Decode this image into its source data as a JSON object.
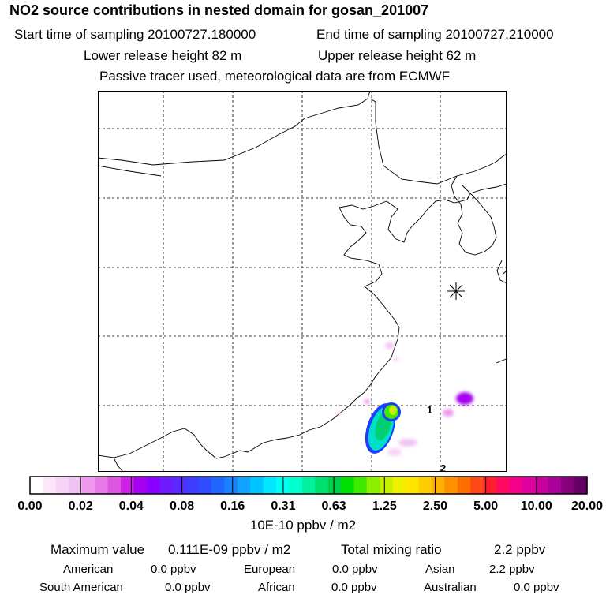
{
  "header": {
    "title": "NO2 source contributions in nested domain for gosan_201007",
    "start_time": "Start time of sampling 20100727.180000",
    "end_time": "End time of sampling 20100727.210000",
    "lower_release": "Lower release height   82 m",
    "upper_release": "Upper release height   62 m",
    "note": "Passive tracer used, meteorological data are from ECMWF"
  },
  "map": {
    "receptor_marker": "receptor-star",
    "labels": [
      "1",
      "2"
    ]
  },
  "colorbar": {
    "tick_labels": [
      "0.00",
      "0.02",
      "0.04",
      "0.08",
      "0.16",
      "0.31",
      "0.63",
      "1.25",
      "2.50",
      "5.00",
      "10.00",
      "20.00"
    ],
    "colors": [
      "#ffffff",
      "#fbe6fb",
      "#f7d4f7",
      "#f2c2f2",
      "#ee99ee",
      "#e87ae8",
      "#dd55e0",
      "#cc22e6",
      "#a600f0",
      "#8c00ff",
      "#6f1aff",
      "#5a2bff",
      "#3e3cff",
      "#2f4dff",
      "#1f66ff",
      "#1a82ff",
      "#10a4ff",
      "#00c4ff",
      "#00e6ff",
      "#00ffee",
      "#00ffcc",
      "#00f09c",
      "#00e070",
      "#00d048",
      "#00e000",
      "#40ea00",
      "#8cf000",
      "#c6f000",
      "#eef000",
      "#ffe600",
      "#ffcc00",
      "#ffb000",
      "#ff9000",
      "#ff6e00",
      "#ff4818",
      "#ff1e30",
      "#ff0a60",
      "#f5008a",
      "#e000a0",
      "#c8009c",
      "#a80098",
      "#86007c",
      "#640064"
    ],
    "unit_label": "10E-10 ppbv / m2"
  },
  "stats": {
    "max_label": "Maximum value",
    "max_value": "0.111E-09 ppbv / m2",
    "total_label": "Total mixing ratio",
    "total_value": "2.2 ppbv",
    "regions": [
      {
        "name": "American",
        "value": "0.0 ppbv"
      },
      {
        "name": "European",
        "value": "0.0 ppbv"
      },
      {
        "name": "Asian",
        "value": "2.2 ppbv"
      },
      {
        "name": "South American",
        "value": "0.0 ppbv"
      },
      {
        "name": "African",
        "value": "0.0 ppbv"
      },
      {
        "name": "Australian",
        "value": "0.0 ppbv"
      }
    ]
  }
}
